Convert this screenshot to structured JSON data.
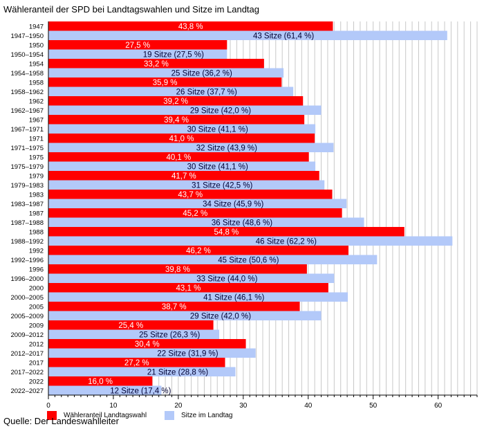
{
  "chart_data": {
    "type": "bar",
    "orientation": "horizontal",
    "title": "Wähleranteil der SPD bei Landtagswahlen und Sitze im Landtag",
    "source": "Quelle: Der Landeswahlleiter",
    "xlabel": "",
    "ylabel": "",
    "xlim": [
      0,
      66
    ],
    "x_ticks": [
      0,
      10,
      20,
      30,
      40,
      50,
      60
    ],
    "grid": "vertical, every 1 unit",
    "legend": [
      {
        "name": "Wähleranteil Landtagswahl",
        "color": "#ff0000"
      },
      {
        "name": "Sitze im Landtag",
        "color": "#b3c9f9"
      }
    ],
    "legend_placement": "bottom",
    "rows": [
      {
        "category": "1947",
        "series": "vote",
        "value": 43.8,
        "label": "43,8 %"
      },
      {
        "category": "1947–1950",
        "series": "seats",
        "value": 61.4,
        "label": "43 Sitze (61,4 %)"
      },
      {
        "category": "1950",
        "series": "vote",
        "value": 27.5,
        "label": "27,5 %"
      },
      {
        "category": "1950–1954",
        "series": "seats",
        "value": 27.5,
        "label": "19 Sitze (27,5 %)"
      },
      {
        "category": "1954",
        "series": "vote",
        "value": 33.2,
        "label": "33,2 %"
      },
      {
        "category": "1954–1958",
        "series": "seats",
        "value": 36.2,
        "label": "25 Sitze (36,2 %)"
      },
      {
        "category": "1958",
        "series": "vote",
        "value": 35.9,
        "label": "35,9 %"
      },
      {
        "category": "1958–1962",
        "series": "seats",
        "value": 37.7,
        "label": "26 Sitze (37,7 %)"
      },
      {
        "category": "1962",
        "series": "vote",
        "value": 39.2,
        "label": "39,2 %"
      },
      {
        "category": "1962–1967",
        "series": "seats",
        "value": 42.0,
        "label": "29 Sitze (42,0 %)"
      },
      {
        "category": "1967",
        "series": "vote",
        "value": 39.4,
        "label": "39,4 %"
      },
      {
        "category": "1967–1971",
        "series": "seats",
        "value": 41.1,
        "label": "30 Sitze (41,1 %)"
      },
      {
        "category": "1971",
        "series": "vote",
        "value": 41.0,
        "label": "41,0 %"
      },
      {
        "category": "1971–1975",
        "series": "seats",
        "value": 43.9,
        "label": "32 Sitze (43,9 %)"
      },
      {
        "category": "1975",
        "series": "vote",
        "value": 40.1,
        "label": "40,1 %"
      },
      {
        "category": "1975–1979",
        "series": "seats",
        "value": 41.1,
        "label": "30 Sitze (41,1 %)"
      },
      {
        "category": "1979",
        "series": "vote",
        "value": 41.7,
        "label": "41,7 %"
      },
      {
        "category": "1979–1983",
        "series": "seats",
        "value": 42.5,
        "label": "31 Sitze (42,5 %)"
      },
      {
        "category": "1983",
        "series": "vote",
        "value": 43.7,
        "label": "43,7 %"
      },
      {
        "category": "1983–1987",
        "series": "seats",
        "value": 45.9,
        "label": "34 Sitze (45,9 %)"
      },
      {
        "category": "1987",
        "series": "vote",
        "value": 45.2,
        "label": "45,2 %"
      },
      {
        "category": "1987–1988",
        "series": "seats",
        "value": 48.6,
        "label": "36 Sitze (48,6 %)"
      },
      {
        "category": "1988",
        "series": "vote",
        "value": 54.8,
        "label": "54,8 %"
      },
      {
        "category": "1988–1992",
        "series": "seats",
        "value": 62.2,
        "label": "46 Sitze (62,2 %)"
      },
      {
        "category": "1992",
        "series": "vote",
        "value": 46.2,
        "label": "46,2 %"
      },
      {
        "category": "1992–1996",
        "series": "seats",
        "value": 50.6,
        "label": "45 Sitze (50,6 %)"
      },
      {
        "category": "1996",
        "series": "vote",
        "value": 39.8,
        "label": "39,8 %"
      },
      {
        "category": "1996–2000",
        "series": "seats",
        "value": 44.0,
        "label": "33 Sitze (44,0 %)"
      },
      {
        "category": "2000",
        "series": "vote",
        "value": 43.1,
        "label": "43,1 %"
      },
      {
        "category": "2000–2005",
        "series": "seats",
        "value": 46.1,
        "label": "41 Sitze (46,1 %)"
      },
      {
        "category": "2005",
        "series": "vote",
        "value": 38.7,
        "label": "38,7 %"
      },
      {
        "category": "2005–2009",
        "series": "seats",
        "value": 42.0,
        "label": "29 Sitze (42,0 %)"
      },
      {
        "category": "2009",
        "series": "vote",
        "value": 25.4,
        "label": "25,4 %"
      },
      {
        "category": "2009–2012",
        "series": "seats",
        "value": 26.3,
        "label": "25 Sitze (26,3 %)"
      },
      {
        "category": "2012",
        "series": "vote",
        "value": 30.4,
        "label": "30,4 %"
      },
      {
        "category": "2012–2017",
        "series": "seats",
        "value": 31.9,
        "label": "22 Sitze (31,9 %)"
      },
      {
        "category": "2017",
        "series": "vote",
        "value": 27.2,
        "label": "27,2 %"
      },
      {
        "category": "2017–2022",
        "series": "seats",
        "value": 28.8,
        "label": "21 Sitze (28,8 %)"
      },
      {
        "category": "2022",
        "series": "vote",
        "value": 16.0,
        "label": "16,0 %"
      },
      {
        "category": "2022–2027",
        "series": "seats",
        "value": 17.4,
        "label": "12 Sitze (17,4 %)"
      }
    ],
    "colors": {
      "vote": "#ff0000",
      "seats": "#b3c9f9",
      "vote_label": "#ffffff",
      "seats_label": "#000033",
      "grid": "#c8c8c8"
    }
  }
}
